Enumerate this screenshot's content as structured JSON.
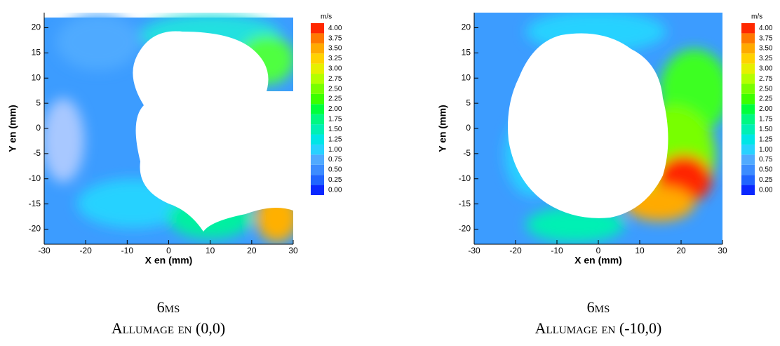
{
  "chart_data": [
    {
      "type": "vector-field",
      "xlabel": "X en (mm)",
      "ylabel": "Y en (mm)",
      "xlim": [
        -30,
        30
      ],
      "ylim": [
        -23,
        23
      ],
      "xticks": [
        -30,
        -20,
        -10,
        0,
        10,
        20,
        30
      ],
      "yticks": [
        -20,
        -15,
        -10,
        -5,
        0,
        5,
        10,
        15,
        20
      ],
      "colorbar": {
        "unit": "m/s",
        "levels": [
          {
            "value": 0,
            "label": "0.00"
          },
          {
            "value": 0.25,
            "label": "0.25"
          },
          {
            "value": 0.5,
            "label": "0.50"
          },
          {
            "value": 0.75,
            "label": "0.75"
          },
          {
            "value": 1,
            "label": "1.00"
          },
          {
            "value": 1.25,
            "label": "1.25"
          },
          {
            "value": 1.5,
            "label": "1.50"
          },
          {
            "value": 1.75,
            "label": "1.75"
          },
          {
            "value": 2,
            "label": "2.00"
          },
          {
            "value": 2.25,
            "label": "2.25"
          },
          {
            "value": 2.5,
            "label": "2.50"
          },
          {
            "value": 2.75,
            "label": "2.75"
          },
          {
            "value": 3,
            "label": "3.00"
          },
          {
            "value": 3.25,
            "label": "3.25"
          },
          {
            "value": 3.5,
            "label": "3.50"
          },
          {
            "value": 3.75,
            "label": "3.75"
          },
          {
            "value": 4,
            "label": "4.00"
          }
        ],
        "colors": [
          "#0a28ff",
          "#2064ff",
          "#3c8cff",
          "#50aaff",
          "#28d2ff",
          "#00e6e6",
          "#00f0b4",
          "#00f882",
          "#00ff3c",
          "#3cff00",
          "#78ff00",
          "#b4ff00",
          "#e6f000",
          "#ffd200",
          "#ffaa00",
          "#ff7800",
          "#ff2800"
        ]
      },
      "caption": [
        "6ms",
        "Allumage en (0,0)"
      ]
    },
    {
      "type": "vector-field",
      "xlabel": "X en (mm)",
      "ylabel": "Y en (mm)",
      "xlim": [
        -30,
        30
      ],
      "ylim": [
        -23,
        23
      ],
      "xticks": [
        -30,
        -20,
        -10,
        0,
        10,
        20,
        30
      ],
      "yticks": [
        -20,
        -15,
        -10,
        -5,
        0,
        5,
        10,
        15,
        20
      ],
      "colorbar": {
        "unit": "m/s",
        "levels": [
          {
            "value": 0,
            "label": "0.00"
          },
          {
            "value": 0.25,
            "label": "0.25"
          },
          {
            "value": 0.5,
            "label": "0.50"
          },
          {
            "value": 0.75,
            "label": "0.75"
          },
          {
            "value": 1,
            "label": "1.00"
          },
          {
            "value": 1.25,
            "label": "1.25"
          },
          {
            "value": 1.5,
            "label": "1.50"
          },
          {
            "value": 1.75,
            "label": "1.75"
          },
          {
            "value": 2,
            "label": "2.00"
          },
          {
            "value": 2.25,
            "label": "2.25"
          },
          {
            "value": 2.5,
            "label": "2.50"
          },
          {
            "value": 2.75,
            "label": "2.75"
          },
          {
            "value": 3,
            "label": "3.00"
          },
          {
            "value": 3.25,
            "label": "3.25"
          },
          {
            "value": 3.5,
            "label": "3.50"
          },
          {
            "value": 3.75,
            "label": "3.75"
          },
          {
            "value": 4,
            "label": "4.00"
          }
        ],
        "colors": [
          "#0a28ff",
          "#2064ff",
          "#3c8cff",
          "#50aaff",
          "#28d2ff",
          "#00e6e6",
          "#00f0b4",
          "#00f882",
          "#00ff3c",
          "#3cff00",
          "#78ff00",
          "#b4ff00",
          "#e6f000",
          "#ffd200",
          "#ffaa00",
          "#ff7800",
          "#ff2800"
        ]
      },
      "caption": [
        "6ms",
        "Allumage en (-10,0)"
      ]
    }
  ]
}
